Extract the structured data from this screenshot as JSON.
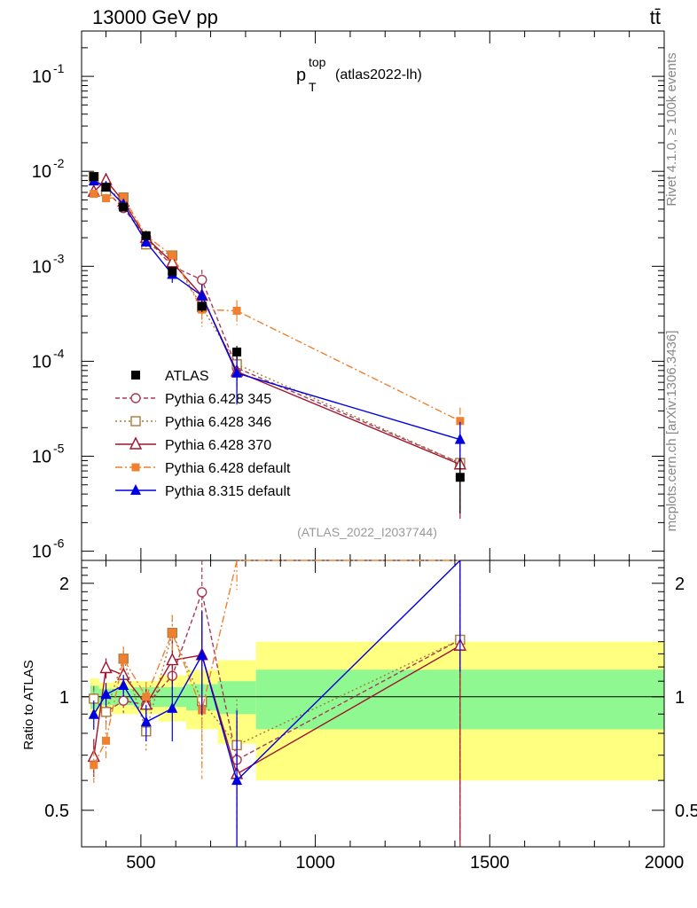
{
  "header": {
    "energy_label": "13000 GeV pp",
    "process_label": "tt̄"
  },
  "side": {
    "rivet_label": "Rivet 4.1.0, ≥ 100k events",
    "source_label": "mcplots.cern.ch [arXiv:1306.3436]"
  },
  "chart_data": {
    "type": "line",
    "title": "p_T^top (atlas2022-lh)",
    "title_main": "p",
    "title_sub": "T",
    "title_sup": "top",
    "title_rest": " (atlas2022-lh)",
    "analysis_id": "(ATLAS_2022_I2037744)",
    "xlabel": "",
    "ylabel": "",
    "ratio_ylabel": "Ratio to ATLAS",
    "xlim": [
      330,
      2000
    ],
    "ylim": [
      8e-07,
      0.3
    ],
    "ratio_ylim": [
      0.4,
      2.3
    ],
    "yscale": "log",
    "x_ticks": [
      500,
      1000,
      1500,
      2000
    ],
    "x_tick_labels": [
      "500",
      "1000",
      "1500",
      "2000"
    ],
    "y_ticks": [
      1e-06,
      1e-05,
      0.0001,
      0.001,
      0.01,
      0.1
    ],
    "y_tick_labels": [
      "10^-6",
      "10^-5",
      "10^-4",
      "10^-3",
      "10^-2",
      "10^-1"
    ],
    "ratio_ticks": [
      0.5,
      1,
      2
    ],
    "ratio_tick_labels": [
      "0.5",
      "1",
      "2"
    ],
    "x": [
      365,
      400,
      450,
      515,
      590,
      675,
      775,
      1415
    ],
    "bin_edges": [
      355,
      380,
      420,
      480,
      550,
      630,
      720,
      830,
      2000
    ],
    "band_inner": [
      0.07,
      0.05,
      0.05,
      0.06,
      0.06,
      0.08,
      0.1,
      0.18
    ],
    "band_outer": [
      0.12,
      0.09,
      0.1,
      0.1,
      0.14,
      0.18,
      0.25,
      0.4
    ],
    "data": {
      "name": "ATLAS",
      "color": "#000000",
      "values": [
        0.0088,
        0.0068,
        0.0042,
        0.0021,
        0.00088,
        0.00038,
        0.000125,
        6e-06
      ],
      "errors": [
        0.0005,
        0.0004,
        0.00025,
        0.00015,
        8e-05,
        5e-05,
        2e-05,
        3.5e-06
      ]
    },
    "series": [
      {
        "name": "Pythia 6.428 345",
        "color": "#a83a55",
        "dash": "5,3",
        "marker": "circle-open",
        "values": [
          0.0087,
          0.0062,
          0.0041,
          0.002,
          0.001,
          0.00072,
          8.5e-05,
          8.5e-06
        ],
        "errors": [
          0.0007,
          0.0005,
          0.0003,
          0.0002,
          0.00012,
          0.0002,
          3e-05,
          6e-06
        ]
      },
      {
        "name": "Pythia 6.428 346",
        "color": "#a87a3a",
        "dash": "2,3",
        "marker": "square-open",
        "values": [
          0.0087,
          0.0062,
          0.0053,
          0.0017,
          0.0013,
          0.00037,
          9.3e-05,
          8.5e-06
        ],
        "errors": [
          0.0007,
          0.0005,
          0.0004,
          0.0002,
          0.00015,
          0.00012,
          3e-05,
          6e-06
        ]
      },
      {
        "name": "Pythia 6.428 370",
        "color": "#a0142d",
        "dash": "",
        "marker": "triangle-open",
        "values": [
          0.0061,
          0.0081,
          0.0048,
          0.002,
          0.0011,
          0.00049,
          7.8e-05,
          8.2e-06
        ],
        "errors": [
          0.0007,
          0.0005,
          0.0003,
          0.0002,
          0.00015,
          0.00015,
          3e-05,
          6e-06
        ]
      },
      {
        "name": "Pythia 6.428 default",
        "color": "#f08030",
        "dash": "8,3,2,3",
        "marker": "square-filled",
        "values": [
          0.0058,
          0.0052,
          0.0053,
          0.0021,
          0.0013,
          0.00035,
          0.00034,
          2.35e-05
        ],
        "errors": [
          0.0006,
          0.0006,
          0.0004,
          0.0002,
          0.00015,
          0.00012,
          0.0001,
          9e-06
        ]
      },
      {
        "name": "Pythia 8.315 default",
        "color": "#0000e0",
        "dash": "",
        "marker": "triangle-filled",
        "values": [
          0.0079,
          0.0069,
          0.0045,
          0.0018,
          0.00082,
          0.00049,
          7.5e-05,
          1.5e-05
        ],
        "errors": [
          0.0007,
          0.0005,
          0.0003,
          0.0002,
          0.00015,
          0.00015,
          4e-05,
          8e-06
        ]
      }
    ]
  }
}
